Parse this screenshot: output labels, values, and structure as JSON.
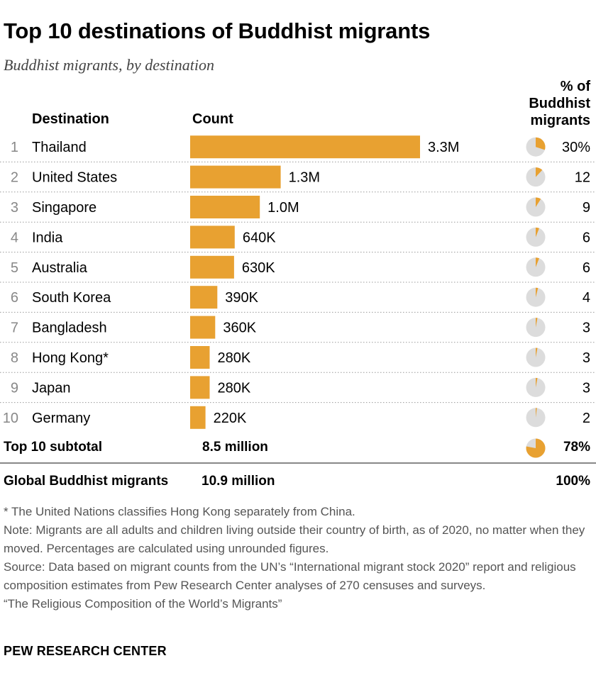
{
  "title": "Top 10 destinations of Buddhist migrants",
  "subtitle": "Buddhist migrants, by destination",
  "headers": {
    "destination": "Destination",
    "count": "Count",
    "percent": "% of Buddhist migrants"
  },
  "subtotal": {
    "label": "Top 10 subtotal",
    "count": "8.5 million",
    "percent": "78%",
    "percent_value": 78
  },
  "global": {
    "label": "Global Buddhist migrants",
    "count": "10.9 million",
    "percent": "100%"
  },
  "notes": [
    "* The United Nations classifies Hong Kong separately from China.",
    "Note: Migrants are all adults and children living outside their country of birth, as of 2020, no matter when they moved. Percentages are calculated using unrounded figures.",
    "Source: Data based on migrant counts from the UN’s “International migrant stock 2020” report and religious composition estimates from Pew Research Center analyses of 270 censuses and surveys.",
    "“The Religious Composition of the World’s Migrants”"
  ],
  "brand": "PEW RESEARCH CENTER",
  "colors": {
    "bar": "#e8a131",
    "pie_bg": "#dcdcdc",
    "rule": "#888888"
  },
  "chart_data": {
    "type": "bar",
    "orientation": "horizontal",
    "title": "Top 10 destinations of Buddhist migrants",
    "ylabel": "Destination",
    "xlabel": "Count",
    "xlim": [
      0,
      3300000
    ],
    "rows": [
      {
        "rank": "1",
        "destination": "Thailand",
        "value": 3300000,
        "label": "3.3M",
        "percent": 30,
        "percent_label": "30%"
      },
      {
        "rank": "2",
        "destination": "United States",
        "value": 1300000,
        "label": "1.3M",
        "percent": 12,
        "percent_label": "12"
      },
      {
        "rank": "3",
        "destination": "Singapore",
        "value": 1000000,
        "label": "1.0M",
        "percent": 9,
        "percent_label": "9"
      },
      {
        "rank": "4",
        "destination": "India",
        "value": 640000,
        "label": "640K",
        "percent": 6,
        "percent_label": "6"
      },
      {
        "rank": "5",
        "destination": "Australia",
        "value": 630000,
        "label": "630K",
        "percent": 6,
        "percent_label": "6"
      },
      {
        "rank": "6",
        "destination": "South Korea",
        "value": 390000,
        "label": "390K",
        "percent": 4,
        "percent_label": "4"
      },
      {
        "rank": "7",
        "destination": "Bangladesh",
        "value": 360000,
        "label": "360K",
        "percent": 3,
        "percent_label": "3"
      },
      {
        "rank": "8",
        "destination": "Hong Kong*",
        "value": 280000,
        "label": "280K",
        "percent": 3,
        "percent_label": "3"
      },
      {
        "rank": "9",
        "destination": "Japan",
        "value": 280000,
        "label": "280K",
        "percent": 3,
        "percent_label": "3"
      },
      {
        "rank": "10",
        "destination": "Germany",
        "value": 220000,
        "label": "220K",
        "percent": 2,
        "percent_label": "2"
      }
    ]
  }
}
